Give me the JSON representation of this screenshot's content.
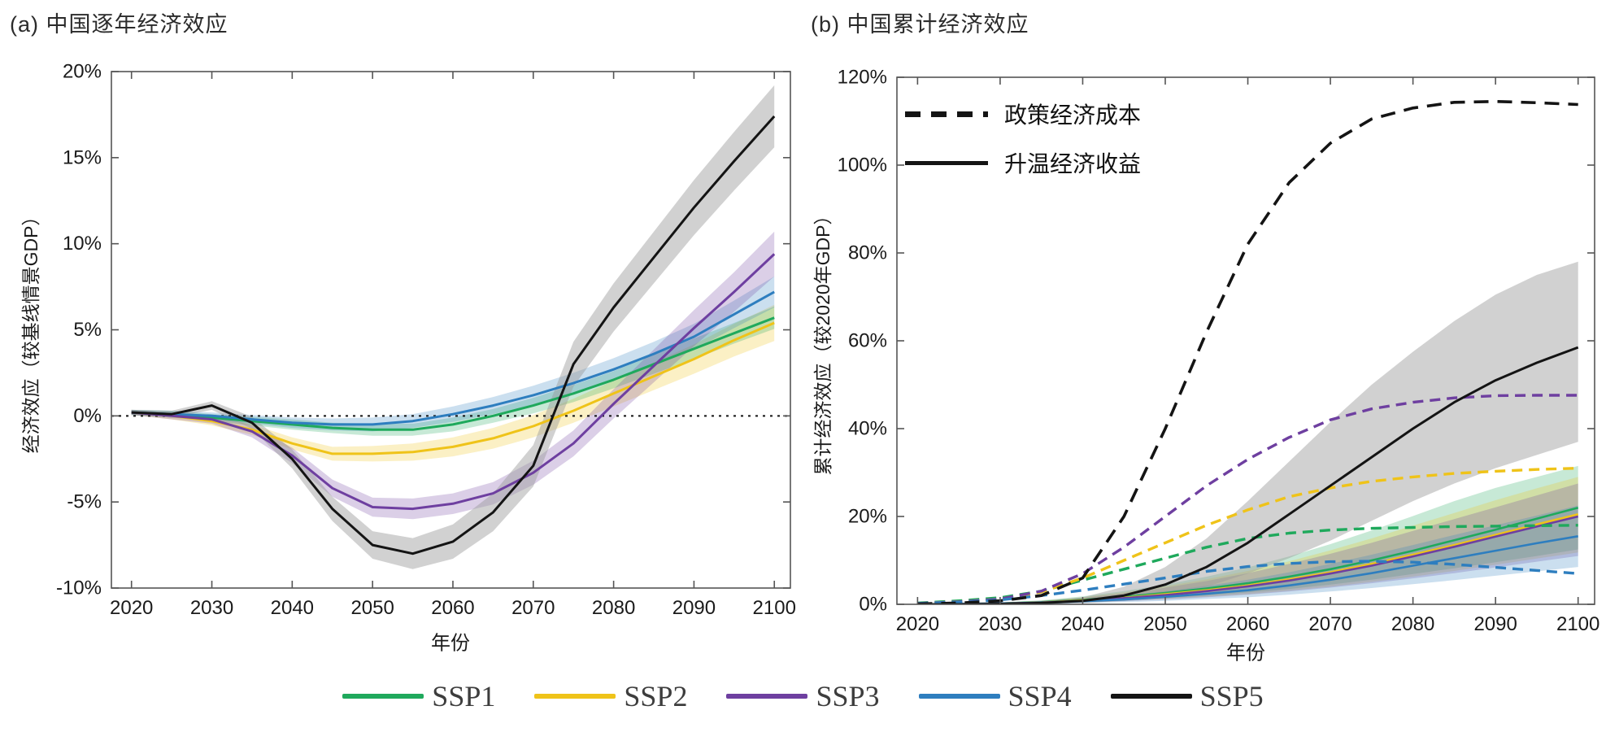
{
  "figure": {
    "panels": [
      {
        "id": "a",
        "title": "(a) 中国逐年经济效应",
        "x_label": "年份",
        "y_label": "经济效应（较基线情景GDP）"
      },
      {
        "id": "b",
        "title": "(b) 中国累计经济效应",
        "x_label": "年份",
        "y_label": "累计经济效应（较2020年GDP）"
      }
    ],
    "inner_legend": [
      {
        "label": "政策经济成本",
        "style": "dashed"
      },
      {
        "label": "升温经济收益",
        "style": "solid"
      }
    ],
    "bottom_legend": [
      {
        "label": "SSP1",
        "color": "#1FA95C"
      },
      {
        "label": "SSP2",
        "color": "#EFC319"
      },
      {
        "label": "SSP3",
        "color": "#6E3FA0"
      },
      {
        "label": "SSP4",
        "color": "#2E7EBF"
      },
      {
        "label": "SSP5",
        "color": "#141414"
      }
    ]
  },
  "chart_data": [
    {
      "panel": "a",
      "type": "line",
      "title": "(a) 中国逐年经济效应",
      "xlabel": "年份",
      "ylabel": "经济效应（较基线情景GDP）",
      "xlim": [
        2017.5,
        2102
      ],
      "ylim": [
        -10,
        20
      ],
      "zero_line": true,
      "grid": false,
      "x": [
        2020,
        2025,
        2030,
        2035,
        2040,
        2045,
        2050,
        2055,
        2060,
        2065,
        2070,
        2075,
        2080,
        2085,
        2090,
        2095,
        2100
      ],
      "x_ticks": {
        "values": [
          2020,
          2030,
          2040,
          2050,
          2060,
          2070,
          2080,
          2090,
          2100
        ],
        "labels": [
          "2020",
          "2030",
          "2040",
          "2050",
          "2060",
          "2070",
          "2080",
          "2090",
          "2100"
        ]
      },
      "y_ticks": {
        "values": [
          20,
          15,
          10,
          5,
          0,
          -5,
          -10
        ],
        "labels": [
          "20%",
          "15%",
          "10%",
          "5%",
          "0%",
          "-5%",
          "-10%"
        ]
      },
      "series": [
        {
          "name": "SSP2",
          "color": "#EFC319",
          "style": "solid",
          "values": [
            0.2,
            0.0,
            -0.3,
            -0.8,
            -1.6,
            -2.2,
            -2.2,
            -2.1,
            -1.8,
            -1.3,
            -0.6,
            0.3,
            1.3,
            2.3,
            3.3,
            4.4,
            5.4
          ],
          "band": [
            0.15,
            0.2,
            0.25,
            0.3,
            0.35,
            0.4,
            0.45,
            0.5,
            0.55,
            0.6,
            0.65,
            0.7,
            0.75,
            0.8,
            0.85,
            0.95,
            1.05
          ]
        },
        {
          "name": "SSP1",
          "color": "#1FA95C",
          "style": "solid",
          "values": [
            0.2,
            0.1,
            -0.1,
            -0.3,
            -0.5,
            -0.7,
            -0.8,
            -0.8,
            -0.5,
            0.0,
            0.6,
            1.3,
            2.1,
            3.0,
            3.9,
            4.8,
            5.7
          ],
          "band": [
            0.15,
            0.2,
            0.2,
            0.25,
            0.3,
            0.3,
            0.35,
            0.35,
            0.4,
            0.4,
            0.45,
            0.5,
            0.5,
            0.55,
            0.6,
            0.6,
            0.65
          ]
        },
        {
          "name": "SSP4",
          "color": "#2E7EBF",
          "style": "solid",
          "values": [
            0.2,
            0.1,
            0.0,
            -0.2,
            -0.4,
            -0.5,
            -0.5,
            -0.3,
            0.1,
            0.6,
            1.2,
            1.9,
            2.7,
            3.6,
            4.6,
            5.9,
            7.2
          ],
          "band": [
            0.15,
            0.2,
            0.2,
            0.25,
            0.3,
            0.35,
            0.4,
            0.4,
            0.45,
            0.5,
            0.55,
            0.6,
            0.65,
            0.7,
            0.75,
            0.8,
            0.9
          ]
        },
        {
          "name": "SSP3",
          "color": "#6E3FA0",
          "style": "solid",
          "values": [
            0.2,
            0.0,
            -0.2,
            -0.9,
            -2.3,
            -4.2,
            -5.3,
            -5.4,
            -5.1,
            -4.5,
            -3.3,
            -1.6,
            0.7,
            2.9,
            5.1,
            7.2,
            9.4
          ],
          "band": [
            0.15,
            0.2,
            0.25,
            0.35,
            0.45,
            0.5,
            0.55,
            0.6,
            0.6,
            0.65,
            0.7,
            0.75,
            0.85,
            0.95,
            1.05,
            1.15,
            1.3
          ]
        },
        {
          "name": "SSP5",
          "color": "#141414",
          "style": "solid",
          "values": [
            0.2,
            0.1,
            0.6,
            -0.4,
            -2.5,
            -5.4,
            -7.5,
            -8.0,
            -7.3,
            -5.6,
            -2.9,
            3.0,
            6.3,
            9.2,
            12.1,
            14.8,
            17.4
          ],
          "band": [
            0.15,
            0.2,
            0.25,
            0.35,
            0.55,
            0.7,
            0.8,
            0.9,
            1.0,
            1.1,
            1.2,
            1.3,
            1.4,
            1.5,
            1.6,
            1.7,
            1.8
          ]
        }
      ]
    },
    {
      "panel": "b",
      "type": "line",
      "title": "(b) 中国累计经济效应",
      "xlabel": "年份",
      "ylabel": "累计经济效应（较2020年GDP）",
      "xlim": [
        2017.5,
        2102
      ],
      "ylim": [
        0,
        120
      ],
      "zero_line": false,
      "grid": false,
      "x": [
        2020,
        2025,
        2030,
        2035,
        2040,
        2045,
        2050,
        2055,
        2060,
        2065,
        2070,
        2075,
        2080,
        2085,
        2090,
        2095,
        2100
      ],
      "x_ticks": {
        "values": [
          2020,
          2030,
          2040,
          2050,
          2060,
          2070,
          2080,
          2090,
          2100
        ],
        "labels": [
          "2020",
          "2030",
          "2040",
          "2050",
          "2060",
          "2070",
          "2080",
          "2090",
          "2100"
        ]
      },
      "y_ticks": {
        "values": [
          120,
          100,
          80,
          60,
          40,
          20,
          0
        ],
        "labels": [
          "120%",
          "100%",
          "80%",
          "60%",
          "40%",
          "20%",
          "0%"
        ]
      },
      "series": [
        {
          "name": "SSP1",
          "group": "升温经济收益",
          "color": "#1FA95C",
          "style": "solid",
          "values": [
            0.0,
            0.1,
            0.2,
            0.5,
            1.0,
            1.7,
            2.6,
            3.6,
            4.8,
            6.3,
            8.0,
            10.0,
            12.2,
            14.6,
            17.0,
            19.5,
            22.0
          ],
          "band_lo": [
            0,
            0,
            0.1,
            0.2,
            0.5,
            0.9,
            1.4,
            2.0,
            2.7,
            3.5,
            4.5,
            5.6,
            6.9,
            8.2,
            9.6,
            11.0,
            12.5
          ],
          "band_hi": [
            0,
            0.2,
            0.4,
            0.9,
            1.8,
            3.0,
            4.5,
            6.3,
            8.4,
            10.9,
            13.7,
            16.8,
            20.1,
            23.5,
            26.5,
            29.0,
            31.5
          ]
        },
        {
          "name": "SSP2",
          "group": "升温经济收益",
          "color": "#EFC319",
          "style": "solid",
          "values": [
            0.0,
            0.1,
            0.2,
            0.4,
            0.9,
            1.5,
            2.3,
            3.2,
            4.3,
            5.7,
            7.3,
            9.2,
            11.3,
            13.5,
            15.8,
            18.2,
            20.5
          ],
          "band_lo": [
            0,
            0,
            0.1,
            0.2,
            0.4,
            0.8,
            1.2,
            1.7,
            2.3,
            3.1,
            4.0,
            5.1,
            6.3,
            7.6,
            9.0,
            10.4,
            11.8
          ],
          "band_hi": [
            0,
            0.2,
            0.4,
            0.8,
            1.6,
            2.7,
            4.1,
            5.7,
            7.6,
            9.8,
            12.3,
            15.0,
            17.9,
            20.8,
            23.7,
            26.4,
            29.0
          ]
        },
        {
          "name": "SSP3",
          "group": "升温经济收益",
          "color": "#6E3FA0",
          "style": "solid",
          "values": [
            0.0,
            0.1,
            0.2,
            0.4,
            0.8,
            1.4,
            2.1,
            3.0,
            4.1,
            5.4,
            7.0,
            8.8,
            10.9,
            13.1,
            15.4,
            17.7,
            20.0
          ],
          "band_lo": [
            0,
            0,
            0.1,
            0.2,
            0.4,
            0.7,
            1.1,
            1.6,
            2.2,
            2.9,
            3.8,
            4.8,
            5.9,
            7.1,
            8.4,
            9.7,
            11.0
          ],
          "band_hi": [
            0,
            0.2,
            0.4,
            0.8,
            1.5,
            2.5,
            3.8,
            5.3,
            7.1,
            9.2,
            11.5,
            14.0,
            16.7,
            19.4,
            22.1,
            24.8,
            27.5
          ]
        },
        {
          "name": "SSP4",
          "group": "升温经济收益",
          "color": "#2E7EBF",
          "style": "solid",
          "values": [
            0.0,
            0.1,
            0.2,
            0.3,
            0.7,
            1.1,
            1.7,
            2.4,
            3.2,
            4.3,
            5.6,
            7.1,
            8.8,
            10.5,
            12.2,
            13.9,
            15.5
          ],
          "band_lo": [
            0,
            0,
            0.1,
            0.1,
            0.3,
            0.5,
            0.8,
            1.2,
            1.6,
            2.2,
            2.9,
            3.7,
            4.6,
            5.5,
            6.5,
            7.5,
            8.5
          ],
          "band_hi": [
            0,
            0.2,
            0.3,
            0.6,
            1.2,
            2.0,
            3.0,
            4.2,
            5.6,
            7.3,
            9.2,
            11.3,
            13.5,
            15.8,
            18.0,
            20.2,
            22.5
          ]
        },
        {
          "name": "SSP1",
          "group": "政策经济成本",
          "color": "#1FA95C",
          "style": "dashed",
          "values": [
            0.3,
            0.8,
            1.5,
            3.0,
            5.5,
            8.0,
            10.5,
            13.0,
            15.0,
            16.2,
            16.9,
            17.3,
            17.5,
            17.7,
            17.8,
            17.9,
            18.0
          ]
        },
        {
          "name": "SSP2",
          "group": "政策经济成本",
          "color": "#EFC319",
          "style": "dashed",
          "values": [
            0.2,
            0.6,
            1.2,
            2.8,
            6.0,
            10.0,
            14.0,
            18.0,
            21.5,
            24.5,
            26.5,
            28.0,
            29.0,
            29.8,
            30.3,
            30.7,
            31.0
          ]
        },
        {
          "name": "SSP3",
          "group": "政策经济成本",
          "color": "#6E3FA0",
          "style": "dashed",
          "values": [
            0.2,
            0.6,
            1.2,
            3.0,
            7.0,
            13.0,
            20.0,
            27.0,
            33.0,
            38.0,
            42.0,
            44.5,
            46.0,
            47.0,
            47.5,
            47.6,
            47.6
          ]
        },
        {
          "name": "SSP4",
          "group": "政策经济成本",
          "color": "#2E7EBF",
          "style": "dashed",
          "values": [
            0.2,
            0.5,
            1.0,
            2.0,
            3.2,
            4.6,
            6.0,
            7.5,
            8.6,
            9.3,
            9.7,
            9.8,
            9.6,
            9.1,
            8.4,
            7.7,
            7.0
          ]
        },
        {
          "name": "SSP5",
          "group": "升温经济收益",
          "color": "#141414",
          "style": "solid",
          "values": [
            0.0,
            0.0,
            0.1,
            0.3,
            0.8,
            2.0,
            4.5,
            8.5,
            14.0,
            20.5,
            27.0,
            33.5,
            40.0,
            46.0,
            51.0,
            55.0,
            58.5
          ],
          "band_lo": [
            0,
            0,
            0,
            0.1,
            0.3,
            0.8,
            2.0,
            4.0,
            7.0,
            10.5,
            14.5,
            19.0,
            23.5,
            27.5,
            31.0,
            34.0,
            37.0
          ],
          "band_hi": [
            0,
            0,
            0.2,
            0.6,
            1.6,
            4.0,
            8.5,
            15.0,
            23.5,
            32.5,
            41.5,
            50.0,
            57.5,
            64.5,
            70.5,
            75.0,
            78.0
          ]
        },
        {
          "name": "SSP5",
          "group": "政策经济成本",
          "color": "#141414",
          "style": "dashed",
          "values": [
            0.1,
            0.3,
            0.8,
            2.0,
            6.0,
            20.0,
            40.0,
            62.0,
            82.0,
            96.0,
            105.0,
            110.5,
            113.0,
            114.3,
            114.5,
            114.2,
            113.8
          ]
        }
      ]
    }
  ]
}
